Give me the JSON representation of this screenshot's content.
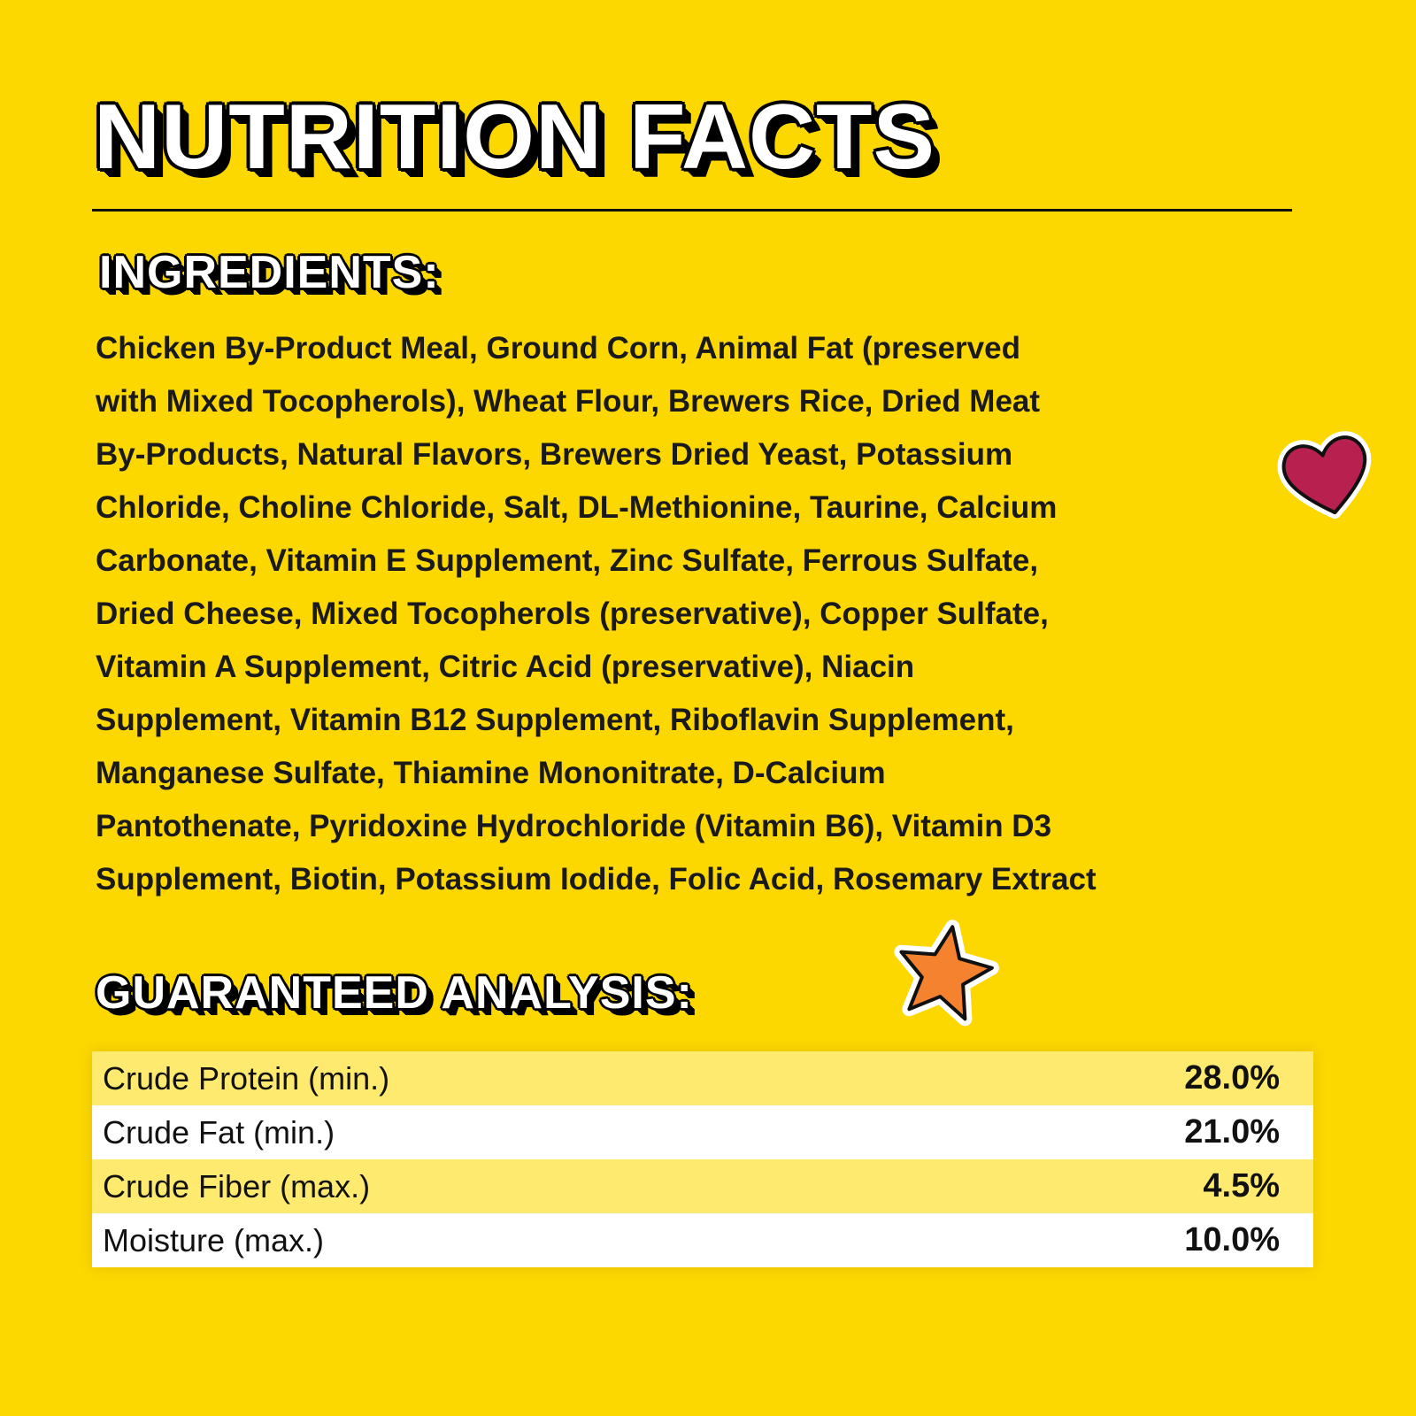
{
  "title": "NUTRITION FACTS",
  "ingredients": {
    "heading": "INGREDIENTS:",
    "lines": [
      "Chicken By-Product Meal, Ground Corn, Animal Fat (preserved",
      "with Mixed Tocopherols), Wheat Flour, Brewers Rice, Dried Meat",
      "By-Products, Natural Flavors, Brewers Dried Yeast, Potassium",
      "Chloride, Choline Chloride, Salt, DL-Methionine, Taurine, Calcium",
      "Carbonate, Vitamin E Supplement, Zinc Sulfate, Ferrous Sulfate,",
      "Dried Cheese, Mixed Tocopherols (preservative), Copper Sulfate,",
      "Vitamin A Supplement, Citric Acid (preservative), Niacin",
      "Supplement, Vitamin B12 Supplement, Riboflavin Supplement,",
      "Manganese Sulfate, Thiamine Mononitrate, D-Calcium",
      "Pantothenate, Pyridoxine Hydrochloride (Vitamin B6), Vitamin D3",
      "Supplement, Biotin, Potassium Iodide, Folic Acid, Rosemary Extract"
    ]
  },
  "analysis": {
    "heading": "GUARANTEED ANALYSIS:",
    "rows": [
      {
        "label": "Crude Protein (min.)",
        "value": "28.0%"
      },
      {
        "label": "Crude Fat (min.)",
        "value": "21.0%"
      },
      {
        "label": "Crude Fiber (max.)",
        "value": "4.5%"
      },
      {
        "label": "Moisture (max.)",
        "value": "10.0%"
      }
    ]
  },
  "colors": {
    "background": "#FDD800",
    "row_alt": "#FFEA70",
    "heart": "#B8204F",
    "star": "#F5822E"
  },
  "icons": [
    "heart-icon",
    "star-icon"
  ]
}
